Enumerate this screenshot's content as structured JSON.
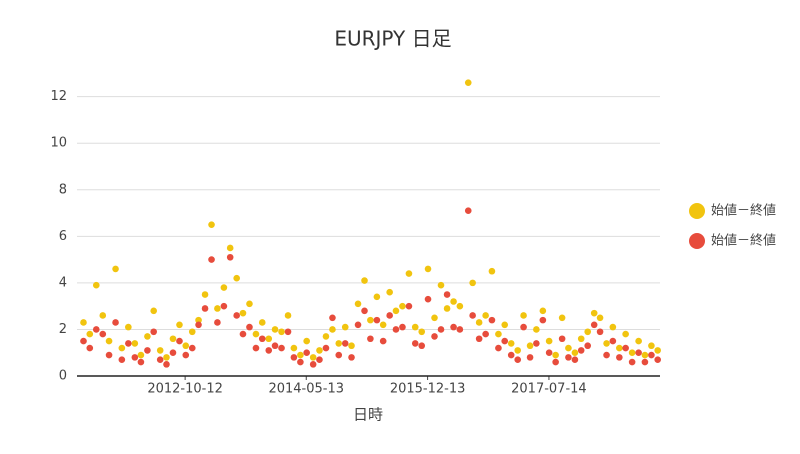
{
  "chart_data": {
    "type": "scatter",
    "title": "EURJPY 日足",
    "x_label": "日時",
    "x": [
      "2011-06-15",
      "2011-07-15",
      "2011-08-15",
      "2011-09-15",
      "2011-10-15",
      "2011-11-15",
      "2011-12-15",
      "2012-01-15",
      "2012-02-15",
      "2012-03-15",
      "2012-04-15",
      "2012-05-15",
      "2012-06-15",
      "2012-07-15",
      "2012-08-15",
      "2012-09-15",
      "2012-10-15",
      "2012-11-15",
      "2012-12-15",
      "2013-01-15",
      "2013-02-15",
      "2013-03-15",
      "2013-04-15",
      "2013-05-15",
      "2013-06-15",
      "2013-07-15",
      "2013-08-15",
      "2013-09-15",
      "2013-10-15",
      "2013-11-15",
      "2013-12-15",
      "2014-01-15",
      "2014-02-15",
      "2014-03-15",
      "2014-04-15",
      "2014-05-15",
      "2014-06-15",
      "2014-07-15",
      "2014-08-15",
      "2014-09-15",
      "2014-10-15",
      "2014-11-15",
      "2014-12-15",
      "2015-01-15",
      "2015-02-15",
      "2015-03-15",
      "2015-04-15",
      "2015-05-15",
      "2015-06-15",
      "2015-07-15",
      "2015-08-15",
      "2015-09-15",
      "2015-10-15",
      "2015-11-15",
      "2015-12-15",
      "2016-01-15",
      "2016-02-15",
      "2016-03-15",
      "2016-04-15",
      "2016-05-15",
      "2016-06-24",
      "2016-07-15",
      "2016-08-15",
      "2016-09-15",
      "2016-10-15",
      "2016-11-15",
      "2016-12-15",
      "2017-01-15",
      "2017-02-15",
      "2017-03-15",
      "2017-04-15",
      "2017-05-15",
      "2017-06-15",
      "2017-07-15",
      "2017-08-15",
      "2017-09-15",
      "2017-10-15",
      "2017-11-15",
      "2017-12-15",
      "2018-01-15",
      "2018-02-15",
      "2018-03-15",
      "2018-04-15",
      "2018-05-15",
      "2018-06-15",
      "2018-07-15",
      "2018-08-15",
      "2018-09-15",
      "2018-10-15",
      "2018-11-15",
      "2018-12-15"
    ],
    "series": [
      {
        "name": "始値－終値",
        "color": "#f1c40f",
        "values": [
          2.3,
          1.8,
          3.9,
          2.6,
          1.5,
          4.6,
          1.2,
          2.1,
          1.4,
          0.9,
          1.7,
          2.8,
          1.1,
          0.8,
          1.6,
          2.2,
          1.3,
          1.9,
          2.4,
          3.5,
          6.5,
          2.9,
          3.8,
          5.5,
          4.2,
          2.7,
          3.1,
          1.8,
          2.3,
          1.6,
          2.0,
          1.9,
          2.6,
          1.2,
          0.9,
          1.5,
          0.8,
          1.1,
          1.7,
          2.0,
          1.4,
          2.1,
          1.3,
          3.1,
          4.1,
          2.4,
          3.4,
          2.2,
          3.6,
          2.8,
          3.0,
          4.4,
          2.1,
          1.9,
          4.6,
          2.5,
          3.9,
          2.9,
          3.2,
          3.0,
          12.6,
          4.0,
          2.3,
          2.6,
          4.5,
          1.8,
          2.2,
          1.4,
          1.1,
          2.6,
          1.3,
          2.0,
          2.8,
          1.5,
          0.9,
          2.5,
          1.2,
          1.0,
          1.6,
          1.9,
          2.7,
          2.5,
          1.4,
          2.1,
          1.2,
          1.8,
          1.0,
          1.5,
          0.9,
          1.3,
          1.1
        ]
      },
      {
        "name": "始値－終値",
        "color": "#e74c3c",
        "values": [
          1.5,
          1.2,
          2.0,
          1.8,
          0.9,
          2.3,
          0.7,
          1.4,
          0.8,
          0.6,
          1.1,
          1.9,
          0.7,
          0.5,
          1.0,
          1.5,
          0.9,
          1.2,
          2.2,
          2.9,
          5.0,
          2.3,
          3.0,
          5.1,
          2.6,
          1.8,
          2.1,
          1.2,
          1.6,
          1.1,
          1.3,
          1.2,
          1.9,
          0.8,
          0.6,
          1.0,
          0.5,
          0.7,
          1.2,
          2.5,
          0.9,
          1.4,
          0.8,
          2.2,
          2.8,
          1.6,
          2.4,
          1.5,
          2.6,
          2.0,
          2.1,
          3.0,
          1.4,
          1.3,
          3.3,
          1.7,
          2.0,
          3.5,
          2.1,
          2.0,
          7.1,
          2.6,
          1.6,
          1.8,
          2.4,
          1.2,
          1.5,
          0.9,
          0.7,
          2.1,
          0.8,
          1.4,
          2.4,
          1.0,
          0.6,
          1.6,
          0.8,
          0.7,
          1.1,
          1.3,
          2.2,
          1.9,
          0.9,
          1.5,
          0.8,
          1.2,
          0.6,
          1.0,
          0.6,
          0.9,
          0.7
        ]
      }
    ],
    "xlim": [
      "2011-05-15",
      "2018-12-26"
    ],
    "xticks": [
      "2012-10-12",
      "2014-05-13",
      "2015-12-13",
      "2017-07-14"
    ],
    "ylim": [
      0,
      12.8
    ],
    "yticks": [
      0,
      2,
      4,
      6,
      8,
      10,
      12
    ],
    "grid": true,
    "legend": "right"
  }
}
